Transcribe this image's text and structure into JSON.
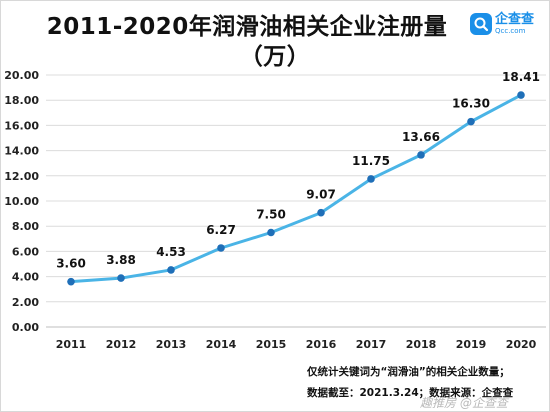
{
  "chart_data": {
    "type": "line",
    "title": "2011-2020年润滑油相关企业注册量",
    "title_line2": "（万）",
    "categories": [
      "2011",
      "2012",
      "2013",
      "2014",
      "2015",
      "2016",
      "2017",
      "2018",
      "2019",
      "2020"
    ],
    "series": [
      {
        "values": [
          3.6,
          3.88,
          4.53,
          6.27,
          7.5,
          9.07,
          11.75,
          13.66,
          16.3,
          18.41
        ]
      }
    ],
    "data_labels": [
      "3.60",
      "3.88",
      "4.53",
      "6.27",
      "7.50",
      "9.07",
      "11.75",
      "13.66",
      "16.30",
      "18.41"
    ],
    "ylim": [
      0,
      20
    ],
    "yticks": [
      "0.00",
      "2.00",
      "4.00",
      "6.00",
      "8.00",
      "10.00",
      "12.00",
      "14.00",
      "16.00",
      "18.00",
      "20.00"
    ],
    "grid": true,
    "line_color": "#4ab4e6",
    "marker_color": "#1f6fb8"
  },
  "logo": {
    "name": "企查查",
    "url": "Qcc.com",
    "icon": "magnifier-icon"
  },
  "notes": {
    "line1": "仅统计关键词为“润滑油”的相关企业数量；",
    "line2": "数据截至：2021.3.24；数据来源：企查查"
  },
  "watermark": "趣推房 @企查查"
}
